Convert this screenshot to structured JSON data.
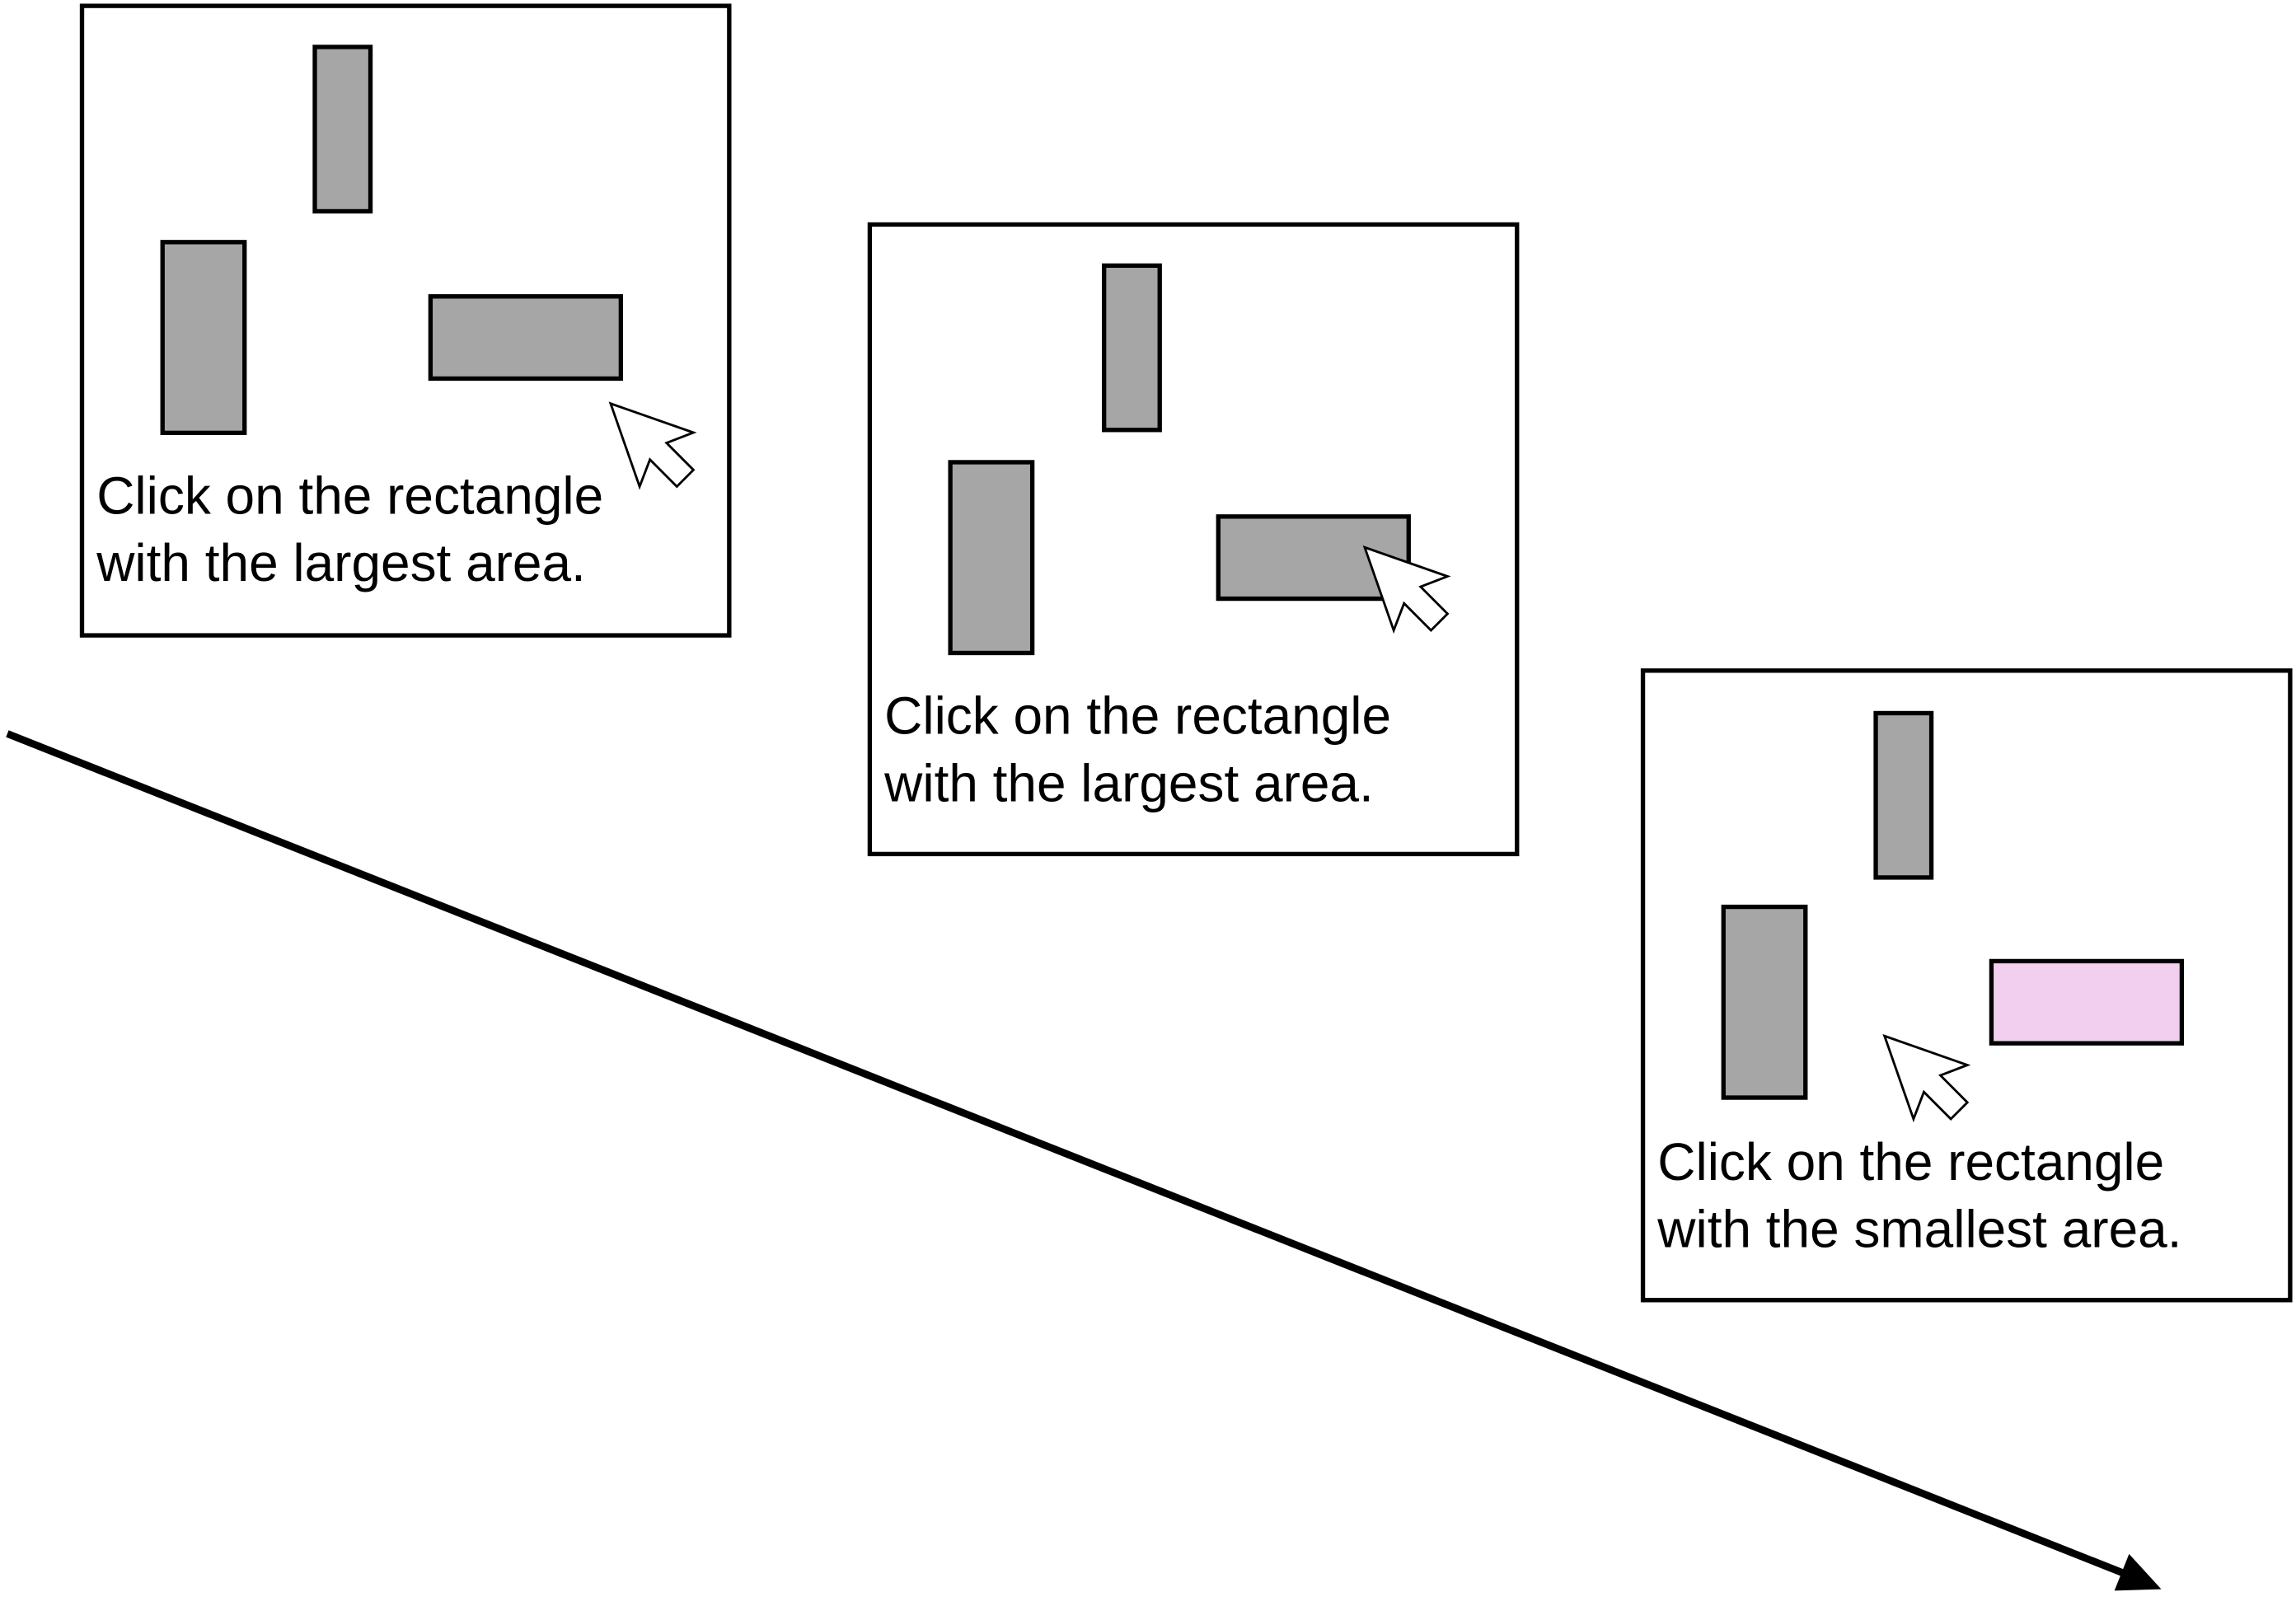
{
  "panels": [
    {
      "instruction_line_1": "Click on the rectangle",
      "instruction_line_2": "with the largest area."
    },
    {
      "instruction_line_1": "Click on the rectangle",
      "instruction_line_2": "with the largest area."
    },
    {
      "instruction_line_1": "Click on the rectangle",
      "instruction_line_2": "with the smallest area."
    }
  ],
  "colors": {
    "background": "#ffffff",
    "frame_fill": "#ffffff",
    "rectangle_fill": "#a6a6a6",
    "highlight_fill": "#f2cfee",
    "pointer_fill": "#ffffff",
    "line_color": "#000000"
  },
  "icons": {
    "pointer": "mouse-pointer-icon",
    "time_arrow": "arrow-icon"
  }
}
